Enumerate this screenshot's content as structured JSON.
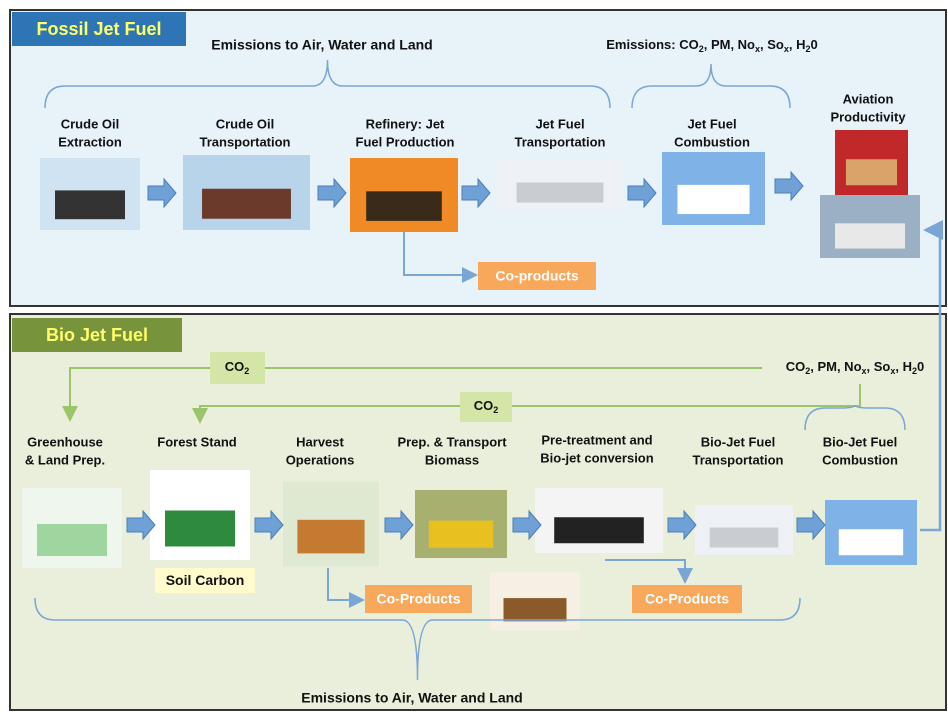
{
  "fossil": {
    "title": "Fossil Jet Fuel",
    "emissions_left": "Emissions to Air, Water and Land",
    "emissions_right": [
      "Emissions: CO",
      "2",
      ", PM, No",
      "x",
      ", So",
      "x",
      ", H",
      "2",
      "0"
    ],
    "steps": [
      [
        "Crude Oil",
        "Extraction"
      ],
      [
        "Crude Oil",
        "Transportation"
      ],
      [
        "Refinery: Jet",
        "Fuel Production"
      ],
      [
        "Jet Fuel",
        "Transportation"
      ],
      [
        "Jet Fuel",
        "Combustion"
      ],
      [
        "Aviation",
        "Productivity"
      ]
    ],
    "co_products": "Co-products"
  },
  "bio": {
    "title": "Bio Jet Fuel",
    "co2_upper": [
      "CO",
      "2"
    ],
    "co2_lower": [
      "CO",
      "2"
    ],
    "emissions_right": [
      "CO",
      "2",
      ", PM, No",
      "x",
      ", So",
      "x",
      ", H",
      "2",
      "0"
    ],
    "steps": [
      [
        "Greenhouse",
        "& Land Prep."
      ],
      [
        "Forest Stand"
      ],
      [
        "Harvest",
        "Operations"
      ],
      [
        "Prep. & Transport",
        "Biomass"
      ],
      [
        "Pre-treatment and",
        "Bio-jet conversion"
      ],
      [
        "Bio-Jet Fuel",
        "Transportation"
      ],
      [
        "Bio-Jet Fuel",
        "Combustion"
      ]
    ],
    "soil_carbon": "Soil Carbon",
    "co_products_1": "Co-Products",
    "co_products_2": "Co-Products",
    "emissions_bottom": "Emissions to Air, Water and Land"
  }
}
